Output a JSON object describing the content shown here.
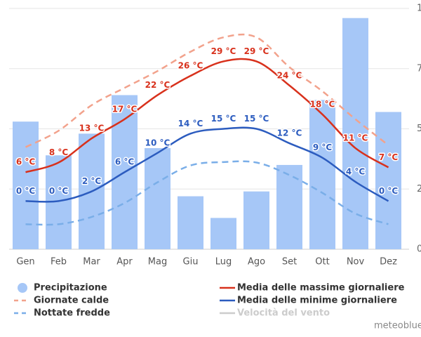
{
  "chart_data": {
    "type": "combo",
    "categories": [
      "Gen",
      "Feb",
      "Mar",
      "Apr",
      "Mag",
      "Giu",
      "Lug",
      "Ago",
      "Set",
      "Ott",
      "Nov",
      "Dez"
    ],
    "ylim": [
      -10,
      40
    ],
    "y2lim": [
      0,
      100
    ],
    "y2ticks": [
      0,
      25,
      50,
      75,
      100
    ],
    "grid": true,
    "series": [
      {
        "name": "Precipitazione",
        "type": "bar",
        "axis": "y2",
        "color": "#a6c7f7",
        "values": [
          53,
          39,
          48,
          64,
          42,
          22,
          13,
          24,
          35,
          62,
          96,
          57
        ]
      },
      {
        "name": "Media delle massime giornaliere",
        "type": "line",
        "color": "#d8311c",
        "values": [
          6,
          8,
          13,
          17,
          22,
          26,
          29,
          29,
          24,
          18,
          11,
          7
        ],
        "value_labels": [
          "6 °C",
          "8 °C",
          "13 °C",
          "17 °C",
          "22 °C",
          "26 °C",
          "29 °C",
          "29 °C",
          "24 °C",
          "18 °C",
          "11 °C",
          "7 °C"
        ]
      },
      {
        "name": "Giornate calde",
        "type": "dashed",
        "color": "#f2a28c",
        "values": [
          11.2,
          14.6,
          19.9,
          23.5,
          27,
          31,
          34,
          34,
          27.8,
          22.8,
          17,
          11.6
        ]
      },
      {
        "name": "Media delle minime giornaliere",
        "type": "line",
        "color": "#2c5cbf",
        "values": [
          0,
          0,
          2,
          6,
          10,
          14,
          15,
          15,
          12,
          9,
          4,
          0
        ],
        "value_labels": [
          "0 °C",
          "0 °C",
          "2 °C",
          "6 °C",
          "10 °C",
          "14 °C",
          "15 °C",
          "15 °C",
          "12 °C",
          "9 °C",
          "4 °C",
          "0 °C"
        ]
      },
      {
        "name": "Nottate fredde",
        "type": "dashed",
        "color": "#7aaee8",
        "values": [
          -4.8,
          -4.8,
          -3.3,
          -0.4,
          3.9,
          7.4,
          8.1,
          8,
          5.4,
          1.7,
          -2.6,
          -4.8
        ]
      }
    ],
    "inactive_legend": {
      "name": "Velocità del vento",
      "color": "#cccccc"
    },
    "legend_order": [
      0,
      2,
      4,
      1,
      3
    ],
    "credit": "meteoblue"
  }
}
